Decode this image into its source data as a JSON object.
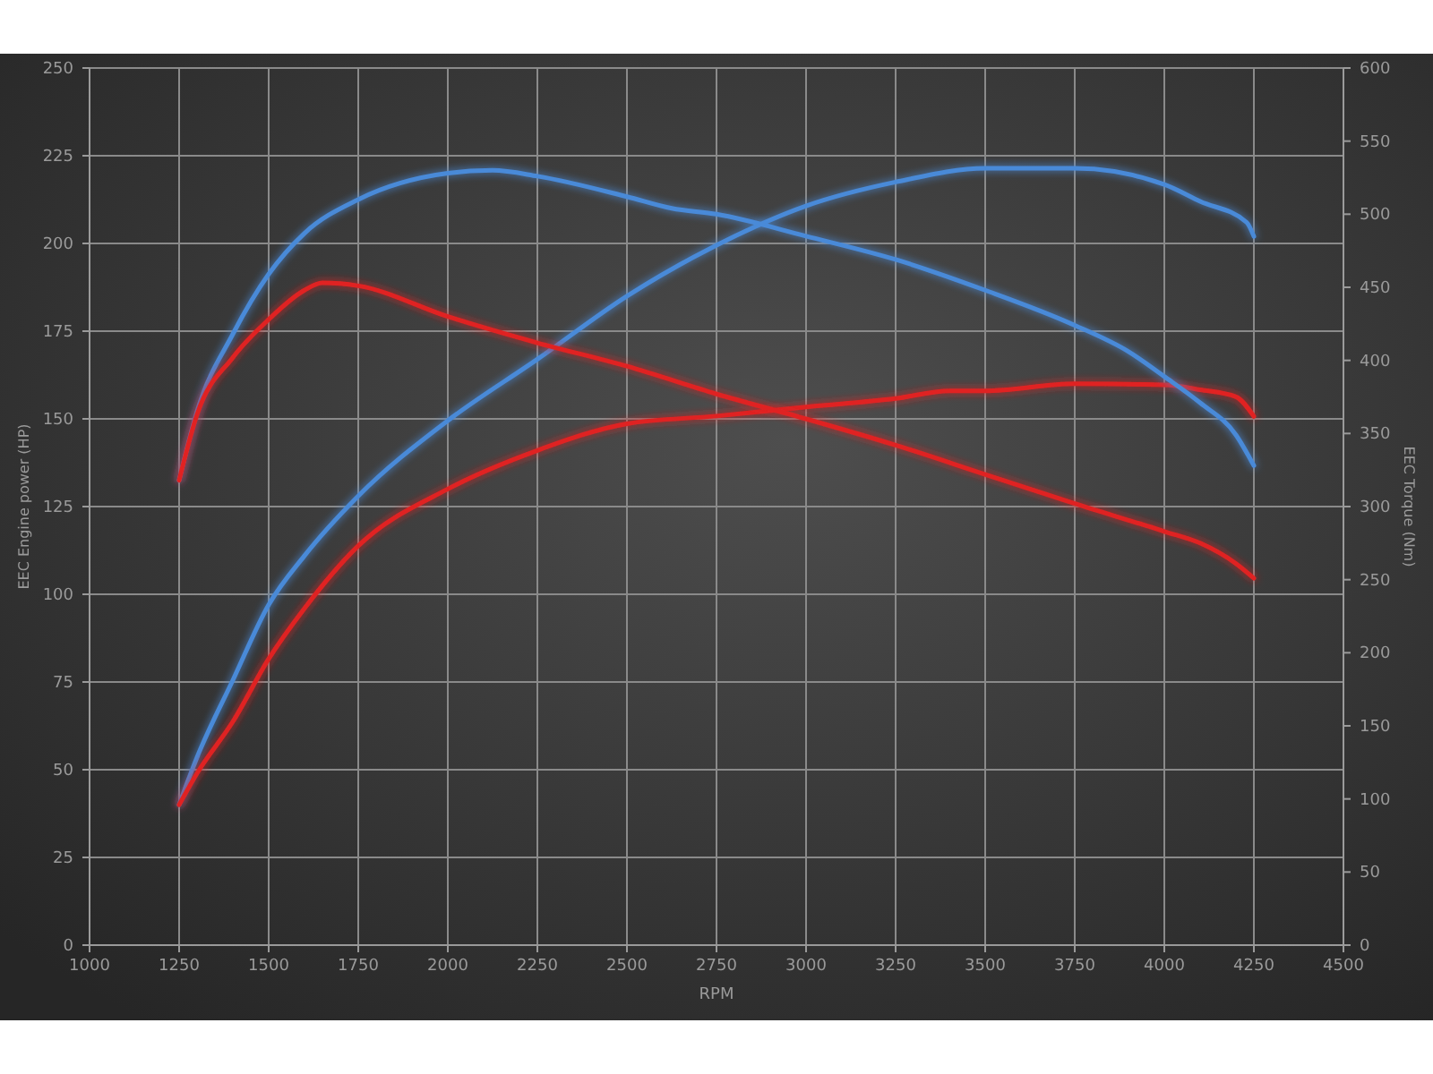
{
  "chart_data": {
    "type": "line",
    "xlabel": "RPM",
    "ylabel": "EEC Engine power (HP)",
    "y2label": "EEC Torque (Nm)",
    "xlim": [
      1000,
      4500
    ],
    "xticks": [
      1000,
      1250,
      1500,
      1750,
      2000,
      2250,
      2500,
      2750,
      3000,
      3250,
      3500,
      3750,
      4000,
      4250,
      4500
    ],
    "ylim": [
      0,
      250
    ],
    "yticks": [
      0,
      25,
      50,
      75,
      100,
      125,
      150,
      175,
      200,
      225,
      250
    ],
    "y2lim": [
      0,
      600
    ],
    "y2ticks": [
      0,
      50,
      100,
      150,
      200,
      250,
      300,
      350,
      400,
      450,
      500,
      550,
      600
    ],
    "grid": true,
    "marker": "none",
    "line_style": "solid",
    "series": [
      {
        "color": "#4a8ad8",
        "x": [
          1250,
          1300,
          1400,
          1500,
          1600,
          1750,
          2000,
          2250,
          2500,
          2750,
          3000,
          3250,
          3500,
          3750,
          4000,
          4100,
          4230,
          4250
        ],
        "values": [
          40,
          53.5,
          75.5,
          97,
          111,
          128,
          149.5,
          167,
          185,
          199.5,
          210.7,
          217.5,
          221.4,
          221.4,
          216.8,
          212,
          206,
          202
        ]
      },
      {
        "color": "#e02424",
        "x": [
          1250,
          1300,
          1400,
          1500,
          1600,
          1750,
          2000,
          2250,
          2500,
          2750,
          3000,
          3250,
          3400,
          3500,
          3750,
          4000,
          4100,
          4200,
          4250
        ],
        "values": [
          40,
          49,
          63.7,
          81.6,
          96,
          113.8,
          130,
          141,
          148.6,
          150.8,
          153.4,
          155.8,
          158,
          158,
          160,
          159.7,
          158.3,
          156.3,
          150.7
        ]
      },
      {
        "color": "#4a8ad8",
        "axis": "y2",
        "x": [
          1250,
          1300,
          1400,
          1500,
          1600,
          1750,
          2000,
          2125,
          2250,
          2500,
          2625,
          2750,
          3000,
          3250,
          3500,
          3750,
          3900,
          4000,
          4100,
          4200,
          4250
        ],
        "values": [
          318,
          365,
          418,
          459,
          487,
          510,
          528,
          530,
          526,
          512,
          504,
          500,
          485,
          469,
          448,
          424,
          406,
          389,
          371,
          349,
          328
        ]
      },
      {
        "color": "#e02424",
        "axis": "y2",
        "x": [
          1250,
          1300,
          1400,
          1500,
          1600,
          1650,
          1750,
          2000,
          2250,
          2500,
          2750,
          3000,
          3250,
          3500,
          3750,
          4000,
          4100,
          4200,
          4250
        ],
        "values": [
          318,
          363,
          402,
          428,
          448,
          453,
          451,
          430,
          412,
          396,
          377,
          360,
          342,
          322,
          302,
          283,
          275,
          261,
          251
        ]
      }
    ]
  }
}
